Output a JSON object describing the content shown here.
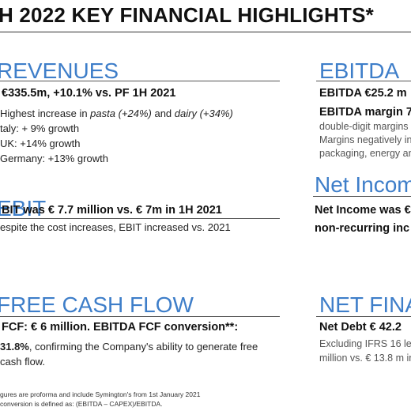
{
  "title": "H 2022 KEY FINANCIAL HIGHLIGHTS*",
  "revenues": {
    "heading": "REVENUES",
    "headline": "€335.5m, +10.1% vs. PF 1H 2021",
    "line1_a": "Highest increase in ",
    "line1_b": "pasta (+24%) ",
    "line1_c": "and ",
    "line1_d": "dairy (+34%)",
    "italy": "taly: + 9% growth",
    "uk": "UK: +14% growth",
    "germany": "Germany: +13% growth"
  },
  "ebitda": {
    "heading": "EBITDA",
    "line1": "EBITDA €25.2 m",
    "line2": "EBITDA margin 7",
    "line3": "double-digit margins",
    "line4": "Margins negatively in",
    "line5": "packaging, energy an"
  },
  "ebit": {
    "heading": "EBIT",
    "headline": "BIT was € 7.7 million vs. € 7m in 1H 2021",
    "sub": "espite the cost increases, EBIT increased vs. 2021"
  },
  "net_income": {
    "heading": "Net Incom",
    "line1": "Net Income was €",
    "line2": "non-recurring inc"
  },
  "fcf": {
    "heading": "FREE CASH FLOW",
    "headline": "FCF: € 6 million. EBITDA FCF conversion**:",
    "line2_a": "31.8%",
    "line2_b": ", confirming the Company's ability to generate free",
    "line3": "cash flow."
  },
  "net_financial": {
    "heading": "NET FINA",
    "line1": "Net Debt € 42.2",
    "line2": "Excluding IFRS 16 leas",
    "line3": "million vs. € 13.8 m in"
  },
  "footnotes": {
    "line1": "gures are proforma and include Symington's from 1st January 2021",
    "line2": "conversion is defined as: (EBITDA –  CAPEX)/EBITDA."
  }
}
